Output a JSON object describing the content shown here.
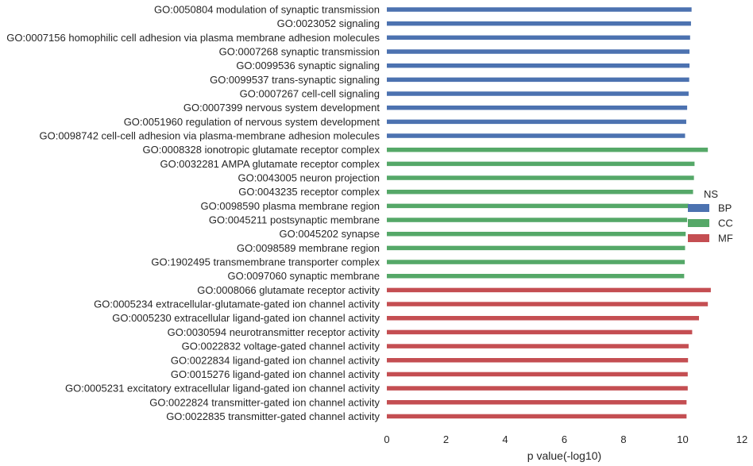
{
  "chart_data": {
    "type": "bar",
    "orientation": "horizontal",
    "xlabel": "p value(-log10)",
    "ylabel": "",
    "xlim": [
      0,
      12
    ],
    "xticks": [
      0,
      2,
      4,
      6,
      8,
      10,
      12
    ],
    "grid": false,
    "legend": {
      "title": "NS",
      "placement": "right",
      "entries": [
        {
          "name": "BP",
          "color": "#4c72b0"
        },
        {
          "name": "CC",
          "color": "#55a868"
        },
        {
          "name": "MF",
          "color": "#c44e52"
        }
      ]
    },
    "categories": [
      {
        "label": "GO:0050804 modulation of synaptic transmission",
        "group": "BP",
        "value": 10.3
      },
      {
        "label": "GO:0023052 signaling",
        "group": "BP",
        "value": 10.28
      },
      {
        "label": "GO:0007156 homophilic cell adhesion via plasma membrane adhesion molecules",
        "group": "BP",
        "value": 10.25
      },
      {
        "label": "GO:0007268 synaptic transmission",
        "group": "BP",
        "value": 10.23
      },
      {
        "label": "GO:0099536 synaptic signaling",
        "group": "BP",
        "value": 10.23
      },
      {
        "label": "GO:0099537 trans-synaptic signaling",
        "group": "BP",
        "value": 10.22
      },
      {
        "label": "GO:0007267 cell-cell signaling",
        "group": "BP",
        "value": 10.2
      },
      {
        "label": "GO:0007399 nervous system development",
        "group": "BP",
        "value": 10.15
      },
      {
        "label": "GO:0051960 regulation of nervous system development",
        "group": "BP",
        "value": 10.12
      },
      {
        "label": "GO:0098742 cell-cell adhesion via plasma-membrane adhesion molecules",
        "group": "BP",
        "value": 10.08
      },
      {
        "label": "GO:0008328 ionotropic glutamate receptor complex",
        "group": "CC",
        "value": 10.85
      },
      {
        "label": "GO:0032281 AMPA glutamate receptor complex",
        "group": "CC",
        "value": 10.4
      },
      {
        "label": "GO:0043005 neuron projection",
        "group": "CC",
        "value": 10.38
      },
      {
        "label": "GO:0043235 receptor complex",
        "group": "CC",
        "value": 10.35
      },
      {
        "label": "GO:0098590 plasma membrane region",
        "group": "CC",
        "value": 10.2
      },
      {
        "label": "GO:0045211 postsynaptic membrane",
        "group": "CC",
        "value": 10.15
      },
      {
        "label": "GO:0045202 synapse",
        "group": "CC",
        "value": 10.1
      },
      {
        "label": "GO:0098589 membrane region",
        "group": "CC",
        "value": 10.08
      },
      {
        "label": "GO:1902495 transmembrane transporter complex",
        "group": "CC",
        "value": 10.07
      },
      {
        "label": "GO:0097060 synaptic membrane",
        "group": "CC",
        "value": 10.05
      },
      {
        "label": "GO:0008066 glutamate receptor activity",
        "group": "MF",
        "value": 10.95
      },
      {
        "label": "GO:0005234 extracellular-glutamate-gated ion channel activity",
        "group": "MF",
        "value": 10.85
      },
      {
        "label": "GO:0005230 extracellular ligand-gated ion channel activity",
        "group": "MF",
        "value": 10.55
      },
      {
        "label": "GO:0030594 neurotransmitter receptor activity",
        "group": "MF",
        "value": 10.32
      },
      {
        "label": "GO:0022832 voltage-gated channel activity",
        "group": "MF",
        "value": 10.2
      },
      {
        "label": "GO:0022834 ligand-gated ion channel activity",
        "group": "MF",
        "value": 10.18
      },
      {
        "label": "GO:0015276 ligand-gated ion channel activity",
        "group": "MF",
        "value": 10.17
      },
      {
        "label": "GO:0005231 excitatory extracellular ligand-gated ion channel activity",
        "group": "MF",
        "value": 10.17
      },
      {
        "label": "GO:0022824 transmitter-gated ion channel activity",
        "group": "MF",
        "value": 10.13
      },
      {
        "label": "GO:0022835 transmitter-gated channel activity",
        "group": "MF",
        "value": 10.13
      }
    ]
  }
}
